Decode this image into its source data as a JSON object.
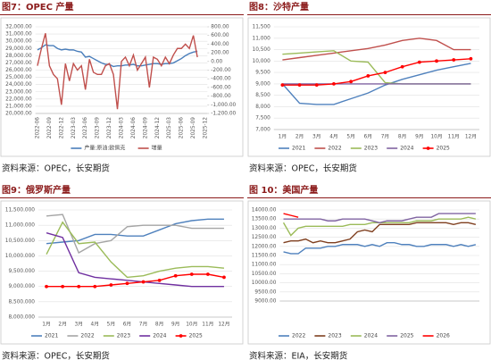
{
  "chart_data": [
    {
      "type": "line",
      "title": "图7：OPEC 产量",
      "source": "资料来源：OPEC，长安期货",
      "categories": [
        "2022-06",
        null,
        null,
        "2022-09",
        null,
        null,
        "2022-12",
        null,
        null,
        "2023-03",
        null,
        null,
        "2023-06",
        null,
        null,
        "2023-09",
        null,
        null,
        "2023-12",
        null,
        null,
        "2024-03",
        null,
        null,
        "2024-06",
        null,
        null,
        "2024-09",
        null,
        null,
        "2024-12",
        null,
        null,
        "2025-03",
        null,
        null,
        "2025-06",
        null,
        null,
        "2025-09",
        null,
        null,
        "2025-12"
      ],
      "series": [
        {
          "name": "产量:原油:欧佩克",
          "color": "#4a7ebb",
          "values": [
            28800,
            29100,
            29500,
            29400,
            29400,
            29000,
            28800,
            28900,
            28800,
            28800,
            28600,
            28500,
            27800,
            27900,
            27600,
            27300,
            27000,
            26800,
            26800,
            26500,
            26600,
            26600,
            26700,
            26700,
            26800,
            26600,
            26600,
            26700,
            26800,
            26900,
            26900,
            26800,
            26900,
            26900,
            27000,
            27300,
            27600,
            28000,
            28300,
            28500,
            28600,
            null,
            null
          ]
        },
        {
          "name": "增量",
          "color": "#c0504d",
          "axis": "y2",
          "values": [
            -100,
            300,
            650,
            -100,
            -300,
            -400,
            -1000,
            -50,
            -450,
            -50,
            -200,
            -100,
            -650,
            50,
            -250,
            -300,
            -300,
            -100,
            -50,
            -300,
            -1100,
            0,
            100,
            -100,
            150,
            -200,
            -50,
            100,
            -600,
            100,
            50,
            -100,
            100,
            -50,
            150,
            300,
            300,
            400,
            300,
            600,
            100,
            null,
            null
          ]
        }
      ],
      "ylim": [
        20000,
        32000
      ],
      "yticks": [
        {
          "value": 20000,
          "label": "20,000.00"
        },
        {
          "value": 21000,
          "label": "21,000.00"
        },
        {
          "value": 22000,
          "label": "22,000.00"
        },
        {
          "value": 23000,
          "label": "23,000.00"
        },
        {
          "value": 24000,
          "label": "24,000.00"
        },
        {
          "value": 25000,
          "label": "25,000.00"
        },
        {
          "value": 26000,
          "label": "26,000.00"
        },
        {
          "value": 27000,
          "label": "27,000.00"
        },
        {
          "value": 28000,
          "label": "28,000.00"
        },
        {
          "value": 29000,
          "label": "29,000.00"
        },
        {
          "value": 30000,
          "label": "30,000.00"
        },
        {
          "value": 31000,
          "label": "31,000.00"
        },
        {
          "value": 32000,
          "label": "32,000.00"
        }
      ],
      "y2lim": [
        -1200,
        800
      ],
      "y2ticks": [
        {
          "value": -1200,
          "label": "-1,200.00"
        },
        {
          "value": -1000,
          "label": "-1,000.00"
        },
        {
          "value": -800,
          "label": "-800.00"
        },
        {
          "value": -600,
          "label": "-600.00"
        },
        {
          "value": -400,
          "label": "-400.00"
        },
        {
          "value": -200,
          "label": "-200.00"
        },
        {
          "value": 0,
          "label": "0.00"
        },
        {
          "value": 200,
          "label": "200.00"
        },
        {
          "value": 400,
          "label": "400.00"
        },
        {
          "value": 600,
          "label": "600.00"
        },
        {
          "value": 800,
          "label": "800.00"
        }
      ],
      "grid": true
    },
    {
      "type": "line",
      "title": "图8：沙特产量",
      "source": "资料来源：OPEC，长安期货",
      "categories": [
        "1月",
        "2月",
        "3月",
        "4月",
        "5月",
        "6月",
        "7月",
        "8月",
        "9月",
        "10月",
        "11月",
        "12月"
      ],
      "series": [
        {
          "name": "2021",
          "color": "#4f81bd",
          "values": [
            9000,
            8150,
            8100,
            8100,
            8350,
            8600,
            8950,
            9200,
            9400,
            9600,
            9750,
            9900
          ]
        },
        {
          "name": "2022",
          "color": "#c0504d",
          "values": [
            10050,
            10150,
            10250,
            10350,
            10450,
            10550,
            10700,
            10900,
            11000,
            10900,
            10500,
            10500
          ]
        },
        {
          "name": "2023",
          "color": "#9bbb59",
          "values": [
            10300,
            10350,
            10400,
            10450,
            10000,
            9950,
            9050,
            9000,
            9000,
            9000,
            9000,
            9000
          ]
        },
        {
          "name": "2024",
          "color": "#8064a2",
          "values": [
            9000,
            9000,
            9000,
            9000,
            9000,
            9000,
            9000,
            9000,
            9000,
            9000,
            9000,
            9000
          ]
        },
        {
          "name": "2025",
          "color": "#ff0000",
          "marker": true,
          "values": [
            8950,
            8950,
            8950,
            9000,
            9100,
            9350,
            9500,
            9750,
            9950,
            10000,
            10050,
            10100
          ]
        }
      ],
      "ylim": [
        7000,
        11500
      ],
      "yticks": [
        {
          "value": 7000,
          "label": "7,000"
        },
        {
          "value": 7500,
          "label": "7,500"
        },
        {
          "value": 8000,
          "label": "8,000"
        },
        {
          "value": 8500,
          "label": "8,500"
        },
        {
          "value": 9000,
          "label": "9,000"
        },
        {
          "value": 9500,
          "label": "9,500"
        },
        {
          "value": 10000,
          "label": "10,000"
        },
        {
          "value": 10500,
          "label": "10,500"
        },
        {
          "value": 11000,
          "label": "11,000"
        },
        {
          "value": 11500,
          "label": "11,500"
        }
      ],
      "grid": true
    },
    {
      "type": "line",
      "title": "图9：俄罗斯产量",
      "source": "资料来源：OPEC，长安期货",
      "categories": [
        "1月",
        "2月",
        "3月",
        "4月",
        "5月",
        "6月",
        "7月",
        "8月",
        "9月",
        "10月",
        "11月",
        "12月"
      ],
      "series": [
        {
          "name": "2021",
          "color": "#4f81bd",
          "values": [
            10400,
            10450,
            10500,
            10700,
            10700,
            10650,
            10650,
            10850,
            11050,
            11150,
            11200,
            11200
          ]
        },
        {
          "name": "2022",
          "color": "#a5a5a5",
          "values": [
            11300,
            11350,
            10100,
            10400,
            10500,
            10950,
            11000,
            11000,
            11000,
            10900,
            10900,
            10900
          ]
        },
        {
          "name": "2023",
          "color": "#9bbb59",
          "values": [
            10050,
            11100,
            10400,
            10450,
            9800,
            9300,
            9350,
            9500,
            9600,
            9650,
            9650,
            9600
          ]
        },
        {
          "name": "2024",
          "color": "#7030a0",
          "values": [
            10750,
            10600,
            9450,
            9300,
            9250,
            9200,
            9150,
            9100,
            9050,
            9000,
            9000,
            9000
          ]
        },
        {
          "name": "2025",
          "color": "#ff0000",
          "marker": true,
          "values": [
            9000,
            9000,
            9000,
            9000,
            9050,
            9100,
            9150,
            9200,
            9350,
            9400,
            9400,
            9300
          ]
        }
      ],
      "ylim": [
        8000,
        11500
      ],
      "yticks": [
        {
          "value": 8000,
          "label": "8,000.000"
        },
        {
          "value": 8500,
          "label": "8,500.000"
        },
        {
          "value": 9000,
          "label": "9,000.000"
        },
        {
          "value": 9500,
          "label": "9,500.000"
        },
        {
          "value": 10000,
          "label": "10,000.000"
        },
        {
          "value": 10500,
          "label": "10,500.000"
        },
        {
          "value": 11000,
          "label": "11,000.000"
        },
        {
          "value": 11500,
          "label": "11,500.000"
        }
      ],
      "grid": true
    },
    {
      "type": "line",
      "title": "图 10：美国产量",
      "source": "资料来源：EIA，长安期货",
      "categories": [
        null,
        null,
        null,
        null,
        null,
        null,
        null,
        null,
        null,
        null,
        null,
        null,
        null,
        null,
        null,
        null,
        null,
        null,
        null,
        null,
        null,
        null,
        null,
        null,
        null,
        null,
        null
      ],
      "series": [
        {
          "name": "2022",
          "color": "#4f81bd",
          "values": [
            11700,
            11600,
            11600,
            11900,
            11900,
            11900,
            12000,
            12000,
            12100,
            12100,
            12100,
            12000,
            12100,
            12000,
            12200,
            12200,
            12100,
            12100,
            12000,
            12000,
            12100,
            12100,
            12100,
            12000,
            12100,
            12000,
            12100
          ]
        },
        {
          "name": "2023",
          "color": "#7f3f1f",
          "values": [
            12200,
            12300,
            12300,
            12400,
            12200,
            12300,
            12200,
            12200,
            12300,
            12400,
            12800,
            12900,
            12800,
            13200,
            13200,
            13200,
            13200,
            13200,
            13300,
            13300,
            13300,
            13300,
            13300,
            13200,
            13300,
            13300,
            13200
          ]
        },
        {
          "name": "2024",
          "color": "#9bbb59",
          "values": [
            13300,
            12600,
            13000,
            13100,
            13100,
            13100,
            13100,
            13100,
            13100,
            13200,
            13200,
            13200,
            13300,
            13300,
            13300,
            13300,
            13300,
            13300,
            13400,
            13400,
            13400,
            13500,
            13500,
            13500,
            13500,
            13600,
            13500
          ]
        },
        {
          "name": "2025",
          "color": "#8064a2",
          "values": [
            13500,
            13500,
            13500,
            13500,
            13500,
            13500,
            13400,
            13400,
            13500,
            13500,
            13500,
            13500,
            13400,
            13300,
            13400,
            13400,
            13400,
            13500,
            13600,
            13600,
            13600,
            13800,
            13800,
            13800,
            13800,
            13800,
            13800
          ]
        },
        {
          "name": "2026",
          "color": "#ff0000",
          "values": [
            13800,
            13700,
            13600,
            null,
            null,
            null,
            null,
            null,
            null,
            null,
            null,
            null,
            null,
            null,
            null,
            null,
            null,
            null,
            null,
            null,
            null,
            null,
            null,
            null,
            null,
            null,
            null
          ]
        }
      ],
      "ylim": [
        9000,
        14000
      ],
      "yticks": [
        {
          "value": 9000,
          "label": "9000.00"
        },
        {
          "value": 9500,
          "label": "9500.00"
        },
        {
          "value": 10000,
          "label": "10000.00"
        },
        {
          "value": 10500,
          "label": "10500.00"
        },
        {
          "value": 11000,
          "label": "11000.00"
        },
        {
          "value": 11500,
          "label": "11500.00"
        },
        {
          "value": 12000,
          "label": "12000.00"
        },
        {
          "value": 12500,
          "label": "12500.00"
        },
        {
          "value": 13000,
          "label": "13000.00"
        },
        {
          "value": 13500,
          "label": "13500.00"
        },
        {
          "value": 14000,
          "label": "14000.00"
        }
      ],
      "grid": true
    }
  ]
}
